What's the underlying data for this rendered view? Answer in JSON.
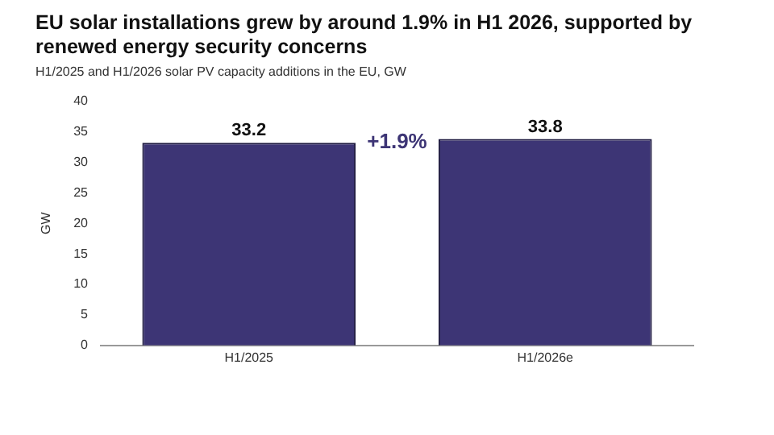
{
  "chart_data": {
    "type": "bar",
    "title": "EU solar installations grew by around 1.9% in H1 2026, supported by renewed energy security concerns",
    "subtitle": "H1/2025 and H1/2026 solar PV capacity additions in the EU, GW",
    "ylabel": "GW",
    "categories": [
      "H1/2025",
      "H1/2026e"
    ],
    "values": [
      33.2,
      33.8
    ],
    "color": "#3d3575",
    "ylim": [
      0,
      40
    ],
    "yticks": [
      0,
      5,
      10,
      15,
      20,
      25,
      30,
      35,
      40
    ],
    "data_labels": true,
    "grid": false,
    "annotations": [
      "+1.9%"
    ]
  }
}
